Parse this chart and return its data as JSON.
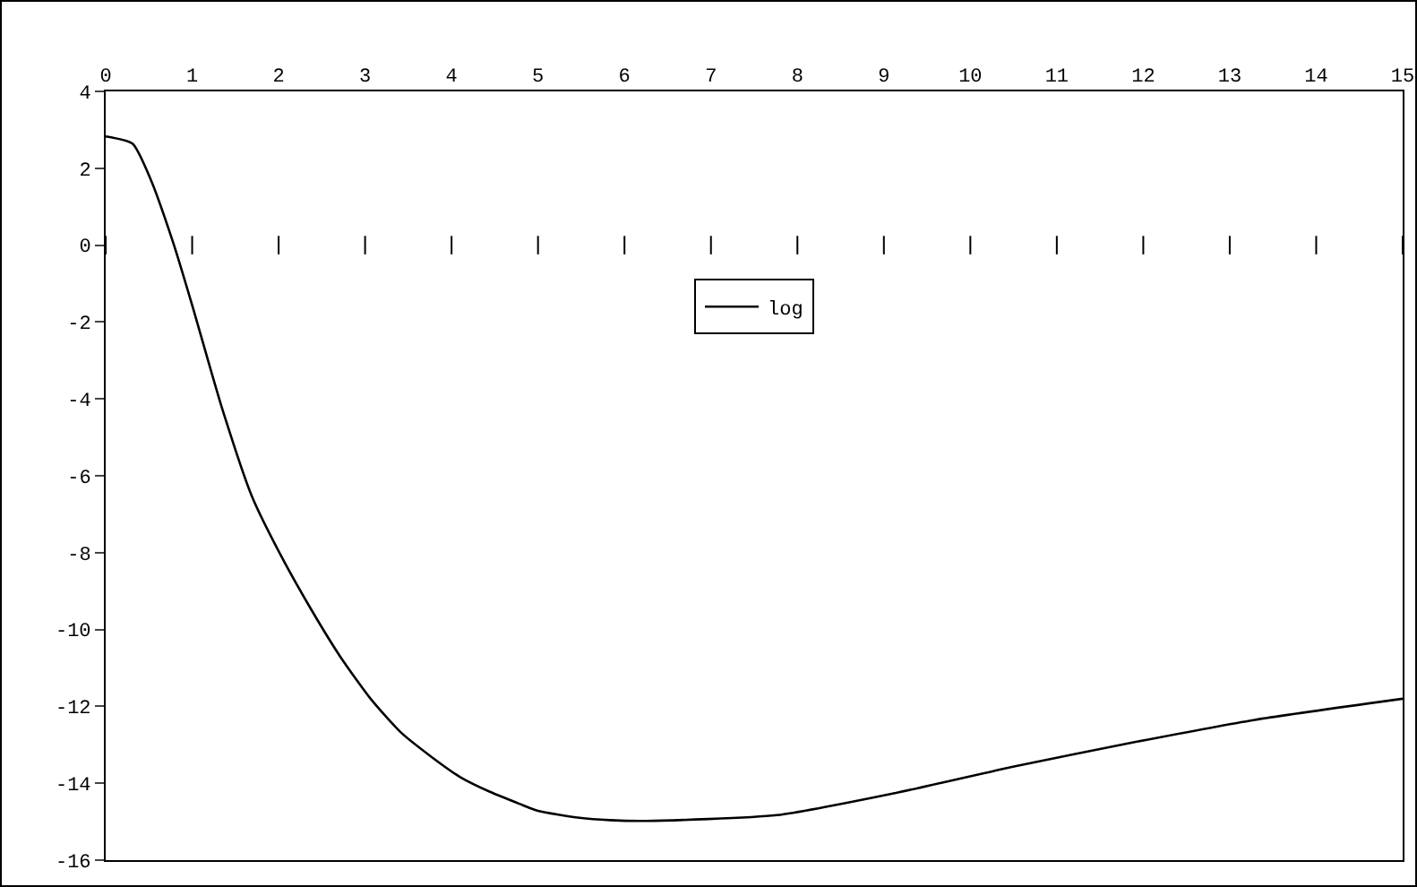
{
  "chart_data": {
    "type": "line",
    "x": [
      0,
      0.31,
      0.52,
      0.79,
      1.0,
      1.34,
      1.69,
      2.03,
      2.38,
      2.72,
      3.07,
      3.41,
      3.76,
      4.1,
      4.45,
      4.79,
      5.0,
      5.48,
      5.83,
      6.25,
      7.76,
      9.14,
      10.53,
      11.9,
      13.29,
      15.0
    ],
    "series": [
      {
        "name": "log",
        "color": "#000000",
        "values": [
          2.83,
          2.64,
          1.71,
          0,
          -1.56,
          -4.2,
          -6.53,
          -8.09,
          -9.49,
          -10.73,
          -11.82,
          -12.67,
          -13.3,
          -13.84,
          -14.23,
          -14.54,
          -14.72,
          -14.9,
          -14.96,
          -14.98,
          -14.83,
          -14.25,
          -13.55,
          -12.93,
          -12.35,
          -11.8
        ]
      }
    ],
    "xlim": [
      0,
      15
    ],
    "xticks": [
      0,
      1,
      2,
      3,
      4,
      5,
      6,
      7,
      8,
      9,
      10,
      11,
      12,
      13,
      14,
      15
    ],
    "ylim": [
      -16,
      4
    ],
    "yticks": [
      -16,
      -14,
      -12,
      -10,
      -8,
      -6,
      -4,
      -2,
      0,
      2,
      4
    ],
    "grid": false,
    "legend": "top",
    "marker": "none",
    "line_style": "solid"
  }
}
